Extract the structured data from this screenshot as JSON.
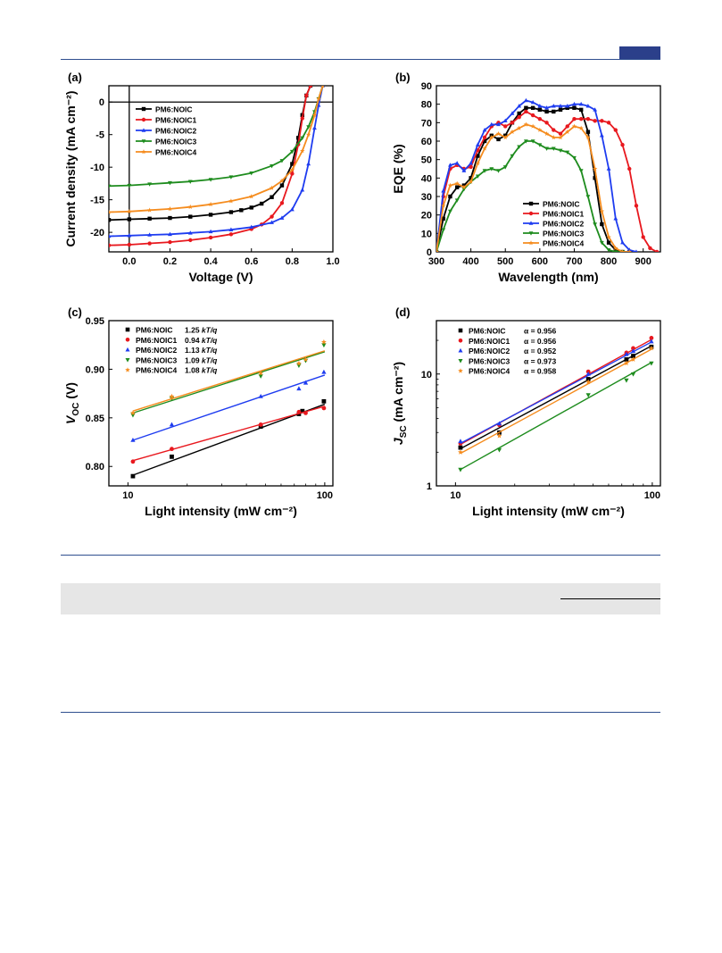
{
  "panels": [
    {
      "id": "a",
      "label": "(a)",
      "xlabel": "Voltage (V)",
      "ylabel": "Current density (mA cm⁻²)",
      "xlim": [
        -0.1,
        1.0
      ],
      "ylim": [
        -23,
        2.5
      ],
      "xticks": [
        "0.0",
        "0.2",
        "0.4",
        "0.6",
        "0.8",
        "1.0"
      ],
      "xtickvals": [
        0,
        0.2,
        0.4,
        0.6,
        0.8,
        1.0
      ],
      "yticks": [
        "0",
        "-5",
        "-10",
        "-15",
        "-20"
      ],
      "ytickvals": [
        0,
        -5,
        -10,
        -15,
        -20
      ],
      "legend": [
        {
          "name": "PM6:NOIC",
          "color": "#000000",
          "marker": "square"
        },
        {
          "name": "PM6:NOIC1",
          "color": "#e8181e",
          "marker": "circle"
        },
        {
          "name": "PM6:NOIC2",
          "color": "#1e3cf0",
          "marker": "triangle-up"
        },
        {
          "name": "PM6:NOIC3",
          "color": "#1e8c1e",
          "marker": "triangle-down"
        },
        {
          "name": "PM6:NOIC4",
          "color": "#f58c1e",
          "marker": "star"
        }
      ]
    },
    {
      "id": "b",
      "label": "(b)",
      "xlabel": "Wavelength (nm)",
      "ylabel": "EQE (%)",
      "xlim": [
        300,
        950
      ],
      "ylim": [
        0,
        90
      ],
      "xticks": [
        "300",
        "400",
        "500",
        "600",
        "700",
        "800",
        "900"
      ],
      "xtickvals": [
        300,
        400,
        500,
        600,
        700,
        800,
        900
      ],
      "yticks": [
        "0",
        "10",
        "20",
        "30",
        "40",
        "50",
        "60",
        "70",
        "80",
        "90"
      ],
      "ytickvals": [
        0,
        10,
        20,
        30,
        40,
        50,
        60,
        70,
        80,
        90
      ],
      "legend": [
        {
          "name": "PM6:NOIC",
          "color": "#000000",
          "marker": "square"
        },
        {
          "name": "PM6:NOIC1",
          "color": "#e8181e",
          "marker": "circle"
        },
        {
          "name": "PM6:NOIC2",
          "color": "#1e3cf0",
          "marker": "triangle-up"
        },
        {
          "name": "PM6:NOIC3",
          "color": "#1e8c1e",
          "marker": "triangle-down"
        },
        {
          "name": "PM6:NOIC4",
          "color": "#f58c1e",
          "marker": "star"
        }
      ]
    },
    {
      "id": "c",
      "label": "(c)",
      "xlabel": "Light intensity (mW cm⁻²)",
      "ylabel_main": "V",
      "ylabel_sub": "OC",
      "ylabel_unit": " (V)",
      "xscale": "log",
      "xlim": [
        8,
        110
      ],
      "ylim": [
        0.78,
        0.95
      ],
      "xticks": [
        "10",
        "100"
      ],
      "xtickvals": [
        10,
        100
      ],
      "yticks": [
        "0.80",
        "0.85",
        "0.90",
        "0.95"
      ],
      "ytickvals": [
        0.8,
        0.85,
        0.9,
        0.95
      ],
      "legend": [
        {
          "name": "PM6:NOIC",
          "value": "1.25",
          "unit": "kT/q",
          "color": "#000000",
          "marker": "square"
        },
        {
          "name": "PM6:NOIC1",
          "value": "0.94",
          "unit": "kT/q",
          "color": "#e8181e",
          "marker": "circle"
        },
        {
          "name": "PM6:NOIC2",
          "value": "1.13",
          "unit": "kT/q",
          "color": "#1e3cf0",
          "marker": "triangle-up"
        },
        {
          "name": "PM6:NOIC3",
          "value": "1.09",
          "unit": "kT/q",
          "color": "#1e8c1e",
          "marker": "triangle-down"
        },
        {
          "name": "PM6:NOIC4",
          "value": "1.08",
          "unit": "kT/q",
          "color": "#f58c1e",
          "marker": "star"
        }
      ]
    },
    {
      "id": "d",
      "label": "(d)",
      "xlabel": "Light intensity (mW cm⁻²)",
      "ylabel_main": "J",
      "ylabel_sub": "SC",
      "ylabel_unit": " (mA cm⁻²)",
      "xscale": "log",
      "yscale": "log",
      "xlim": [
        8,
        110
      ],
      "ylim": [
        1,
        30
      ],
      "xticks": [
        "10",
        "100"
      ],
      "xtickvals": [
        10,
        100
      ],
      "yticks": [
        "1",
        "10"
      ],
      "ytickvals": [
        1,
        10
      ],
      "legend": [
        {
          "name": "PM6:NOIC",
          "value": "α = 0.956",
          "color": "#000000",
          "marker": "square"
        },
        {
          "name": "PM6:NOIC1",
          "value": "α = 0.956",
          "color": "#e8181e",
          "marker": "circle"
        },
        {
          "name": "PM6:NOIC2",
          "value": "α = 0.952",
          "color": "#1e3cf0",
          "marker": "triangle-up"
        },
        {
          "name": "PM6:NOIC3",
          "value": "α = 0.973",
          "color": "#1e8c1e",
          "marker": "triangle-down"
        },
        {
          "name": "PM6:NOIC4",
          "value": "α = 0.958",
          "color": "#f58c1e",
          "marker": "star"
        }
      ]
    }
  ],
  "chart_data": [
    {
      "type": "line",
      "panel": "a",
      "series": [
        {
          "name": "PM6:NOIC",
          "x": [
            -0.1,
            0,
            0.1,
            0.2,
            0.3,
            0.4,
            0.5,
            0.55,
            0.6,
            0.65,
            0.7,
            0.75,
            0.8,
            0.83,
            0.85,
            0.87,
            0.89
          ],
          "y": [
            -18.1,
            -18.0,
            -17.9,
            -17.8,
            -17.6,
            -17.3,
            -16.9,
            -16.6,
            -16.2,
            -15.6,
            -14.6,
            -12.8,
            -9.5,
            -5.5,
            -2.0,
            1.0,
            2.5
          ]
        },
        {
          "name": "PM6:NOIC1",
          "x": [
            -0.1,
            0,
            0.1,
            0.2,
            0.3,
            0.4,
            0.5,
            0.6,
            0.65,
            0.7,
            0.75,
            0.8,
            0.83,
            0.85,
            0.87,
            0.89
          ],
          "y": [
            -22.0,
            -21.9,
            -21.7,
            -21.5,
            -21.2,
            -20.8,
            -20.3,
            -19.5,
            -18.8,
            -17.6,
            -15.5,
            -11.0,
            -6.5,
            -2.5,
            1.0,
            2.5
          ]
        },
        {
          "name": "PM6:NOIC2",
          "x": [
            -0.1,
            0,
            0.1,
            0.2,
            0.3,
            0.4,
            0.5,
            0.6,
            0.7,
            0.75,
            0.8,
            0.85,
            0.88,
            0.91,
            0.93,
            0.95
          ],
          "y": [
            -20.6,
            -20.5,
            -20.4,
            -20.3,
            -20.1,
            -19.9,
            -19.6,
            -19.2,
            -18.5,
            -17.8,
            -16.5,
            -13.5,
            -9.5,
            -4.0,
            -0.5,
            2.5
          ]
        },
        {
          "name": "PM6:NOIC3",
          "x": [
            -0.1,
            0,
            0.1,
            0.2,
            0.3,
            0.4,
            0.5,
            0.6,
            0.7,
            0.75,
            0.8,
            0.85,
            0.88,
            0.91,
            0.93,
            0.95
          ],
          "y": [
            -12.9,
            -12.8,
            -12.6,
            -12.4,
            -12.2,
            -11.9,
            -11.5,
            -10.9,
            -9.8,
            -9.0,
            -7.6,
            -5.5,
            -3.8,
            -1.5,
            0.5,
            2.5
          ]
        },
        {
          "name": "PM6:NOIC4",
          "x": [
            -0.1,
            0,
            0.1,
            0.2,
            0.3,
            0.4,
            0.5,
            0.6,
            0.7,
            0.75,
            0.8,
            0.85,
            0.88,
            0.91,
            0.93,
            0.95
          ],
          "y": [
            -16.9,
            -16.8,
            -16.6,
            -16.4,
            -16.1,
            -15.7,
            -15.2,
            -14.5,
            -13.2,
            -12.1,
            -10.4,
            -7.5,
            -5.0,
            -2.0,
            0.5,
            2.5
          ]
        }
      ]
    },
    {
      "type": "line",
      "panel": "b",
      "series": [
        {
          "name": "PM6:NOIC",
          "x": [
            300,
            320,
            340,
            360,
            380,
            400,
            420,
            440,
            460,
            480,
            500,
            520,
            540,
            560,
            580,
            600,
            620,
            640,
            660,
            680,
            700,
            720,
            740,
            760,
            780,
            800,
            820,
            840,
            860
          ],
          "y": [
            0,
            18,
            30,
            35,
            36,
            40,
            52,
            60,
            63,
            61,
            63,
            70,
            75,
            78,
            78,
            77,
            76,
            76,
            77,
            78,
            78,
            77,
            65,
            40,
            15,
            5,
            1,
            0,
            0
          ]
        },
        {
          "name": "PM6:NOIC1",
          "x": [
            300,
            320,
            340,
            360,
            380,
            400,
            420,
            440,
            460,
            480,
            500,
            520,
            540,
            560,
            580,
            600,
            620,
            640,
            660,
            680,
            700,
            720,
            740,
            760,
            780,
            800,
            820,
            840,
            860,
            880,
            900,
            920,
            940
          ],
          "y": [
            0,
            30,
            45,
            47,
            45,
            46,
            55,
            62,
            68,
            70,
            68,
            70,
            73,
            76,
            74,
            72,
            70,
            66,
            64,
            68,
            72,
            72,
            72,
            71,
            71,
            70,
            66,
            58,
            45,
            25,
            8,
            2,
            0
          ]
        },
        {
          "name": "PM6:NOIC2",
          "x": [
            300,
            320,
            340,
            360,
            380,
            400,
            420,
            440,
            460,
            480,
            500,
            520,
            540,
            560,
            580,
            600,
            620,
            640,
            660,
            680,
            700,
            720,
            740,
            760,
            780,
            800,
            820,
            840,
            860,
            880
          ],
          "y": [
            0,
            33,
            47,
            48,
            44,
            48,
            58,
            66,
            69,
            69,
            71,
            75,
            79,
            82,
            81,
            79,
            78,
            79,
            79,
            79,
            80,
            80,
            79,
            77,
            63,
            45,
            18,
            5,
            1,
            0
          ]
        },
        {
          "name": "PM6:NOIC3",
          "x": [
            300,
            320,
            340,
            360,
            380,
            400,
            420,
            440,
            460,
            480,
            500,
            520,
            540,
            560,
            580,
            600,
            620,
            640,
            660,
            680,
            700,
            720,
            740,
            760,
            780,
            800,
            820,
            840
          ],
          "y": [
            0,
            12,
            22,
            28,
            34,
            38,
            41,
            44,
            45,
            44,
            46,
            52,
            57,
            60,
            60,
            58,
            56,
            56,
            55,
            54,
            51,
            44,
            30,
            15,
            5,
            1,
            0,
            0
          ]
        },
        {
          "name": "PM6:NOIC4",
          "x": [
            300,
            320,
            340,
            360,
            380,
            400,
            420,
            440,
            460,
            480,
            500,
            520,
            540,
            560,
            580,
            600,
            620,
            640,
            660,
            680,
            700,
            720,
            740,
            760,
            780,
            800,
            820,
            840,
            860
          ],
          "y": [
            0,
            25,
            36,
            37,
            35,
            38,
            48,
            56,
            62,
            64,
            62,
            65,
            67,
            69,
            68,
            66,
            64,
            62,
            62,
            65,
            68,
            67,
            62,
            45,
            22,
            8,
            2,
            0,
            0
          ]
        }
      ]
    },
    {
      "type": "scatter",
      "panel": "c",
      "series": [
        {
          "name": "PM6:NOIC",
          "x": [
            10.6,
            16.7,
            47.3,
            73.9,
            77,
            99
          ],
          "y": [
            0.79,
            0.81,
            0.841,
            0.854,
            0.857,
            0.867
          ],
          "fit": [
            0.791,
            0.864
          ]
        },
        {
          "name": "PM6:NOIC1",
          "x": [
            10.6,
            16.7,
            47.3,
            73.9,
            80,
            99
          ],
          "y": [
            0.805,
            0.818,
            0.843,
            0.856,
            0.855,
            0.86
          ],
          "fit": [
            0.806,
            0.862
          ]
        },
        {
          "name": "PM6:NOIC2",
          "x": [
            10.6,
            16.7,
            47.3,
            73.9,
            80,
            99
          ],
          "y": [
            0.827,
            0.843,
            0.872,
            0.88,
            0.886,
            0.897
          ],
          "fit": [
            0.827,
            0.894
          ]
        },
        {
          "name": "PM6:NOIC3",
          "x": [
            10.6,
            16.7,
            47.3,
            73.9,
            80,
            99
          ],
          "y": [
            0.853,
            0.87,
            0.893,
            0.904,
            0.909,
            0.925
          ],
          "fit": [
            0.855,
            0.918
          ]
        },
        {
          "name": "PM6:NOIC4",
          "x": [
            10.6,
            16.7,
            47.3,
            73.9,
            80,
            99
          ],
          "y": [
            0.855,
            0.872,
            0.896,
            0.906,
            0.91,
            0.928
          ],
          "fit": [
            0.857,
            0.919
          ]
        }
      ]
    },
    {
      "type": "scatter",
      "panel": "d",
      "series": [
        {
          "name": "PM6:NOIC",
          "x": [
            10.6,
            16.7,
            47.3,
            73.9,
            80,
            99
          ],
          "y": [
            2.2,
            3.0,
            9.0,
            13.5,
            14.5,
            17.5
          ],
          "fit": [
            2.15,
            18.0
          ]
        },
        {
          "name": "PM6:NOIC1",
          "x": [
            10.6,
            16.7,
            47.3,
            73.9,
            80,
            99
          ],
          "y": [
            2.4,
            3.5,
            10.5,
            15.5,
            17.0,
            21.0
          ],
          "fit": [
            2.35,
            20.5
          ]
        },
        {
          "name": "PM6:NOIC2",
          "x": [
            10.6,
            16.7,
            47.3,
            73.9,
            80,
            99
          ],
          "y": [
            2.5,
            3.6,
            10.0,
            15.0,
            16.0,
            19.5
          ],
          "fit": [
            2.4,
            19.5
          ]
        },
        {
          "name": "PM6:NOIC3",
          "x": [
            10.6,
            16.7,
            47.3,
            73.9,
            80,
            99
          ],
          "y": [
            1.4,
            2.1,
            6.5,
            8.8,
            10.0,
            12.5
          ],
          "fit": [
            1.4,
            12.8
          ]
        },
        {
          "name": "PM6:NOIC4",
          "x": [
            10.6,
            16.7,
            47.3,
            73.9,
            80,
            99
          ],
          "y": [
            2.0,
            2.8,
            8.5,
            12.5,
            13.5,
            17.0
          ],
          "fit": [
            1.95,
            16.8
          ]
        }
      ]
    }
  ]
}
